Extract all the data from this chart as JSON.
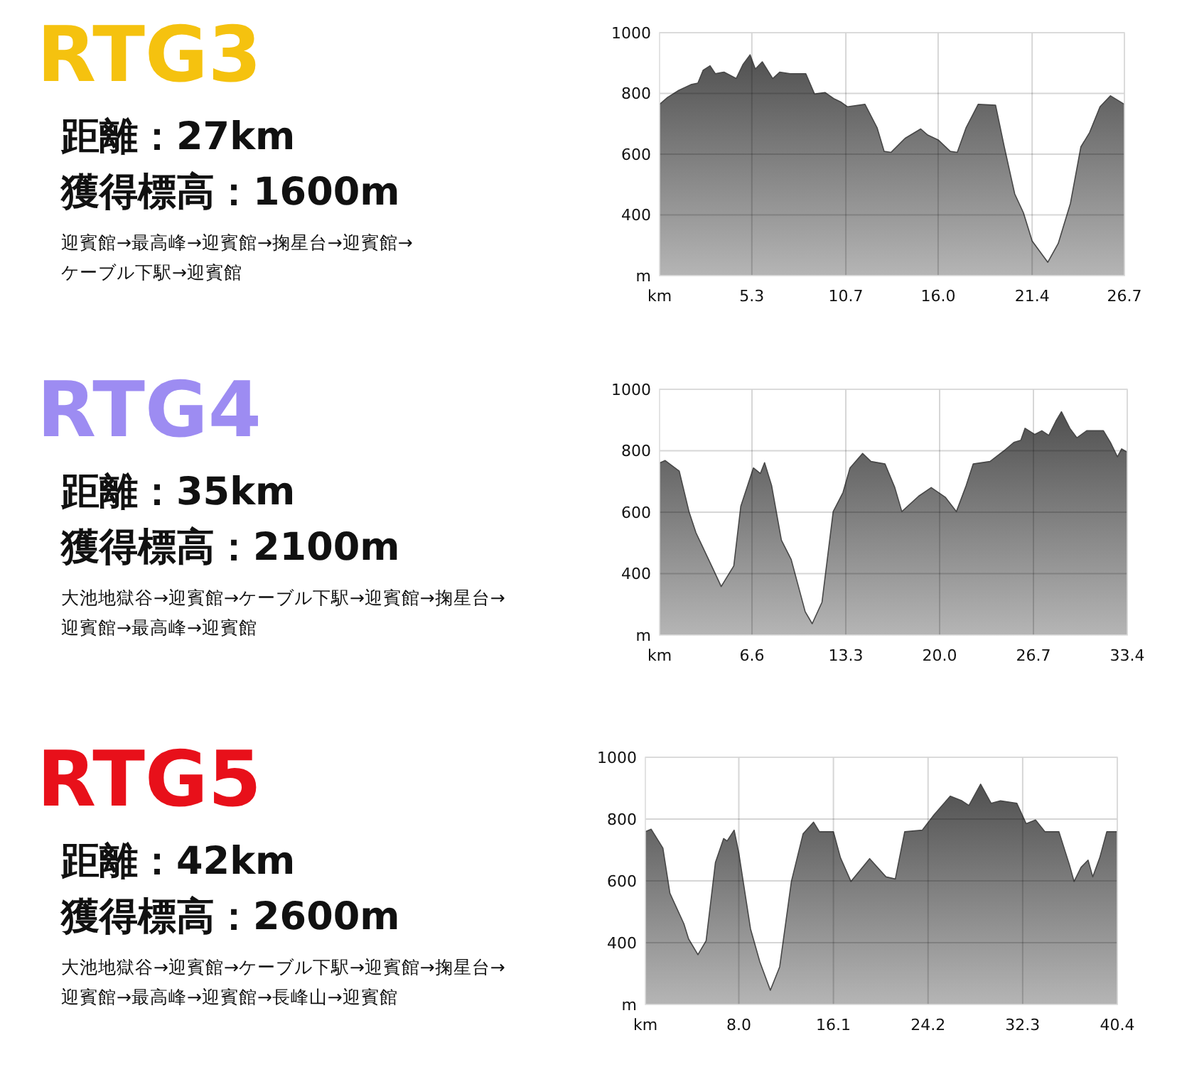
{
  "chart_data": [
    {
      "type": "other",
      "title": "RTG3",
      "color": "#f5c20f",
      "annotations": [
        "距離：27km",
        "獲得標高：1600m",
        "迎賓館→最高峰→迎賓館→掬星台→迎賓館→",
        "ケーブル下駅→迎賓館"
      ]
    },
    {
      "type": "area",
      "xlim": [
        0,
        26.7
      ],
      "ylim": [
        200,
        1000
      ],
      "xlabel": "km",
      "ylabel": "m",
      "xticks": [
        5.3,
        10.7,
        {
          "value": 16,
          "label": "16.0"
        },
        21.4,
        26.7
      ],
      "yticks": [
        400,
        600,
        800,
        1000
      ],
      "grid": true,
      "x": [
        0,
        0.46,
        1.1,
        1.8,
        2.2,
        2.5,
        2.9,
        3.2,
        3.7,
        4.4,
        4.8,
        5.2,
        5.5,
        5.9,
        6.5,
        6.9,
        7.5,
        8.4,
        8.9,
        9.5,
        10.0,
        10.4,
        10.8,
        11.8,
        12.5,
        12.9,
        13.3,
        14.1,
        15.0,
        15.4,
        16.0,
        16.7,
        17.1,
        17.6,
        18.3,
        19.3,
        19.8,
        20.4,
        20.9,
        21.4,
        22.3,
        22.9,
        23.6,
        24.2,
        24.7,
        25.3,
        25.9,
        26.7
      ],
      "series": [
        {
          "color": "#7a7a7a",
          "values": [
            764,
            787,
            810,
            829,
            834,
            876,
            891,
            865,
            870,
            849,
            896,
            927,
            880,
            904,
            849,
            870,
            865,
            865,
            798,
            803,
            783,
            772,
            756,
            764,
            686,
            609,
            606,
            652,
            683,
            663,
            647,
            609,
            606,
            686,
            764,
            761,
            624,
            469,
            407,
            314,
            244,
            306,
            438,
            624,
            671,
            756,
            792,
            764
          ]
        }
      ]
    },
    {
      "type": "other",
      "title": "RTG4",
      "color": "#9d8cf2",
      "annotations": [
        "距離：35km",
        "獲得標高：2100m",
        "大池地獄谷→迎賓館→ケーブル下駅→迎賓館→掬星台→",
        "迎賓館→最高峰→迎賓館"
      ]
    },
    {
      "type": "area",
      "xlim": [
        0,
        33.4
      ],
      "ylim": [
        200,
        1000
      ],
      "xlabel": "km",
      "ylabel": "m",
      "xticks": [
        6.6,
        13.3,
        {
          "value": 20,
          "label": "20.0"
        },
        26.7,
        33.4
      ],
      "yticks": [
        400,
        600,
        800,
        1000
      ],
      "grid": true,
      "x": [
        0,
        0.4,
        1.4,
        2.1,
        2.6,
        3.8,
        4.4,
        5.3,
        5.8,
        6.7,
        7.2,
        7.5,
        8.0,
        8.7,
        9.4,
        10.4,
        10.9,
        11.6,
        12.4,
        13.1,
        13.6,
        14.5,
        15.1,
        16.1,
        16.8,
        17.3,
        18.5,
        19.4,
        20.4,
        21.2,
        21.9,
        22.4,
        23.6,
        24.6,
        25.3,
        25.8,
        26.1,
        26.8,
        27.3,
        27.8,
        28.3,
        28.7,
        29.3,
        29.8,
        30.5,
        31.7,
        32.2,
        32.7,
        33.0,
        33.4
      ],
      "series": [
        {
          "color": "#7a7a7a",
          "values": [
            760,
            768,
            734,
            602,
            533,
            417,
            358,
            425,
            619,
            744,
            726,
            761,
            687,
            509,
            446,
            276,
            237,
            307,
            602,
            664,
            744,
            791,
            765,
            757,
            680,
            602,
            652,
            680,
            649,
            602,
            687,
            757,
            765,
            800,
            827,
            834,
            873,
            853,
            865,
            850,
            896,
            927,
            873,
            842,
            865,
            865,
            827,
            780,
            806,
            795
          ]
        }
      ]
    },
    {
      "type": "other",
      "title": "RTG5",
      "color": "#e8101a",
      "annotations": [
        "距離：42km",
        "獲得標高：2600m",
        "大池地獄谷→迎賓館→ケーブル下駅→迎賓館→掬星台→",
        "迎賓館→最高峰→迎賓館→長峰山→迎賓館"
      ]
    },
    {
      "type": "area",
      "xlim": [
        0,
        40.4
      ],
      "ylim": [
        200,
        1000
      ],
      "xlabel": "km",
      "ylabel": "m",
      "xticks": [
        {
          "value": 8,
          "label": "8.0"
        },
        16.1,
        24.2,
        32.3,
        40.4
      ],
      "yticks": [
        400,
        600,
        800,
        1000
      ],
      "grid": true,
      "x": [
        0,
        0.5,
        1.5,
        2.1,
        3.3,
        3.7,
        4.5,
        5.2,
        6.0,
        6.7,
        7.0,
        7.6,
        8.0,
        9.0,
        9.8,
        10.7,
        11.5,
        12.5,
        13.5,
        14.4,
        14.9,
        16.1,
        16.7,
        17.6,
        19.2,
        20.6,
        21.4,
        22.2,
        23.7,
        24.7,
        26.1,
        27.1,
        27.7,
        28.7,
        29.6,
        30.4,
        31.8,
        32.6,
        33.4,
        34.2,
        35.4,
        36.3,
        36.7,
        37.3,
        37.9,
        38.3,
        38.9,
        39.5,
        40.4
      ],
      "series": [
        {
          "color": "#7a7a7a",
          "values": [
            759,
            767,
            706,
            560,
            461,
            412,
            361,
            406,
            660,
            737,
            729,
            764,
            690,
            445,
            338,
            246,
            322,
            598,
            752,
            790,
            759,
            759,
            675,
            598,
            672,
            613,
            606,
            759,
            764,
            813,
            874,
            859,
            844,
            913,
            851,
            859,
            851,
            785,
            797,
            759,
            759,
            652,
            598,
            644,
            667,
            613,
            675,
            759,
            759
          ]
        }
      ]
    }
  ]
}
